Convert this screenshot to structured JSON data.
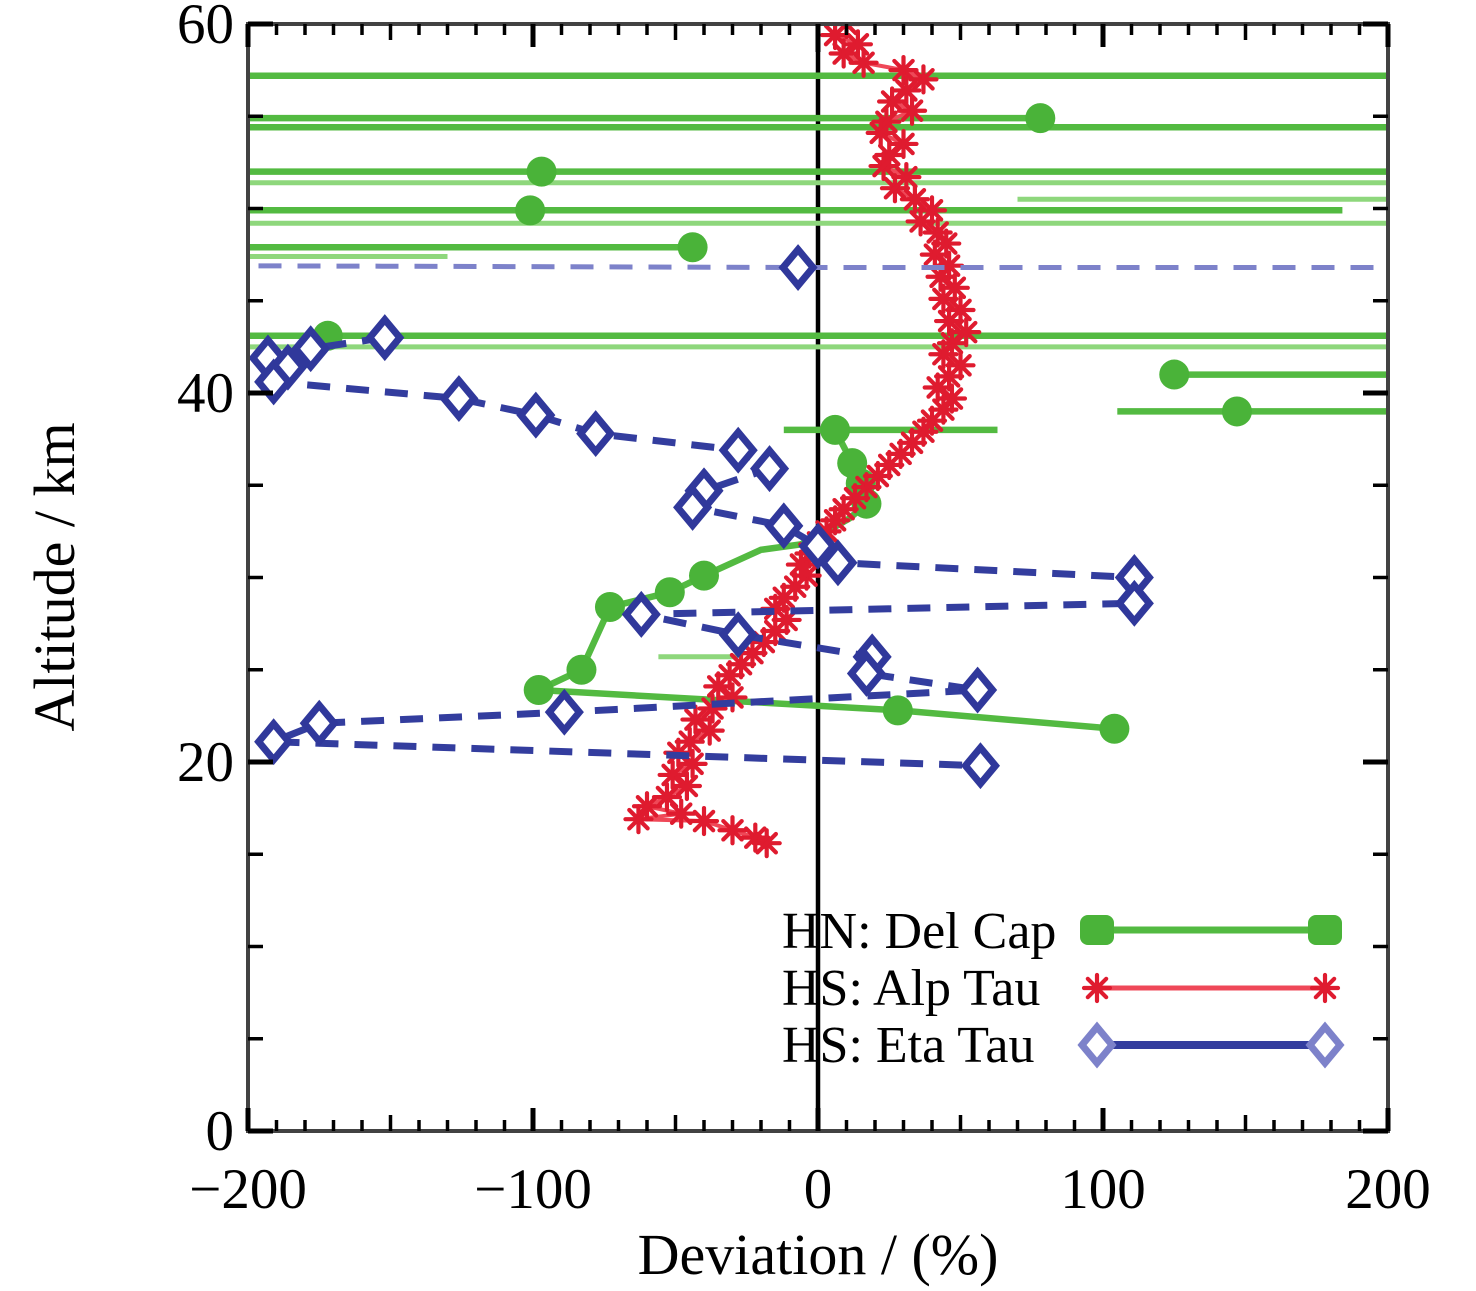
{
  "axes": {
    "xlabel": "Deviation / (%)",
    "ylabel": "Altitude / km",
    "x_tick_labels": [
      "−200",
      "−100",
      "0",
      "100",
      "200"
    ],
    "y_tick_labels": [
      "0",
      "20",
      "40",
      "60"
    ]
  },
  "legend": {
    "items": [
      {
        "label": "HN: Del Cap"
      },
      {
        "label": "HS: Alp Tau"
      },
      {
        "label": "HS: Eta Tau"
      }
    ]
  },
  "chart_data": {
    "type": "line",
    "title": "",
    "xlabel": "Deviation / (%)",
    "ylabel": "Altitude / km",
    "xlim": [
      -200,
      200
    ],
    "ylim": [
      0,
      60
    ],
    "x_major_ticks": [
      -200,
      -100,
      0,
      100,
      200
    ],
    "x_medium_step": 50,
    "x_minor_step": 10,
    "y_major_ticks": [
      0,
      20,
      40,
      60
    ],
    "y_minor_step": 5,
    "zero_line_x": 0,
    "grid": false,
    "legend_position": "lower right inside plot",
    "series": [
      {
        "id": "hn-del-cap",
        "name": "HN: Del Cap",
        "color": "#53ba41",
        "light_color": "#8ed77c",
        "marker": "circle",
        "marker_color": "#4ab339",
        "line_style": "solid",
        "line_width": 6.5,
        "chains": [
          {
            "line": [
              [
                -210,
                57.2
              ],
              [
                210,
                57.2
              ]
            ]
          },
          {
            "line": [
              [
                -210,
                54.9
              ],
              [
                78,
                54.9
              ]
            ],
            "markers": [
              [
                78,
                54.9
              ]
            ]
          },
          {
            "line": [
              [
                -210,
                54.4
              ],
              [
                210,
                54.4
              ]
            ]
          },
          {
            "line": [
              [
                -210,
                52.0
              ],
              [
                -97,
                52.0
              ],
              [
                210,
                52.0
              ]
            ],
            "markers": [
              [
                -97,
                52.0
              ]
            ]
          },
          {
            "line": [
              [
                -210,
                51.4
              ],
              [
                210,
                51.4
              ]
            ],
            "light": true
          },
          {
            "line": [
              [
                70,
                50.5
              ],
              [
                210,
                50.5
              ]
            ],
            "light": true
          },
          {
            "line": [
              [
                -210,
                49.9
              ],
              [
                -101,
                49.9
              ],
              [
                184,
                49.9
              ]
            ],
            "markers": [
              [
                -101,
                49.9
              ]
            ]
          },
          {
            "line": [
              [
                -210,
                49.2
              ],
              [
                210,
                49.2
              ]
            ],
            "light": true
          },
          {
            "line": [
              [
                -210,
                47.9
              ],
              [
                -44,
                47.9
              ]
            ],
            "markers": [
              [
                -44,
                47.9
              ]
            ]
          },
          {
            "line": [
              [
                -210,
                47.4
              ],
              [
                -130,
                47.4
              ]
            ],
            "light": true
          },
          {
            "line": [
              [
                -210,
                43.1
              ],
              [
                -172,
                43.1
              ],
              [
                210,
                43.1
              ]
            ],
            "markers": [
              [
                -172,
                43.1
              ]
            ]
          },
          {
            "line": [
              [
                -210,
                42.5
              ],
              [
                210,
                42.5
              ]
            ],
            "light": true
          },
          {
            "line": [
              [
                125,
                41.0
              ],
              [
                210,
                41.0
              ]
            ],
            "markers": [
              [
                125,
                41.0
              ]
            ]
          },
          {
            "line": [
              [
                105,
                39.0
              ],
              [
                147,
                39.0
              ],
              [
                210,
                39.0
              ]
            ],
            "markers": [
              [
                147,
                39.0
              ]
            ]
          },
          {
            "line": [
              [
                -12,
                38.0
              ],
              [
                6,
                38.0
              ],
              [
                63,
                38.0
              ]
            ],
            "markers": [
              [
                6,
                38.0
              ]
            ]
          },
          {
            "line": [
              [
                6,
                38.0
              ],
              [
                12,
                36.2
              ],
              [
                15,
                35.1
              ],
              [
                17,
                34.0
              ],
              [
                11,
                33.2
              ],
              [
                2,
                32.4
              ],
              [
                -6,
                31.8
              ],
              [
                -20,
                31.5
              ],
              [
                -40,
                30.1
              ],
              [
                -52,
                29.2
              ],
              [
                -73,
                28.4
              ],
              [
                -83,
                25.0
              ],
              [
                -98,
                23.9
              ],
              [
                28,
                22.8
              ],
              [
                104,
                21.8
              ]
            ],
            "markers": [
              [
                12,
                36.2
              ],
              [
                15,
                35.1
              ],
              [
                17,
                34.0
              ],
              [
                -40,
                30.1
              ],
              [
                -52,
                29.2
              ],
              [
                -73,
                28.4
              ],
              [
                -83,
                25.0
              ],
              [
                -98,
                23.9
              ],
              [
                28,
                22.8
              ],
              [
                104,
                21.8
              ]
            ]
          },
          {
            "line": [
              [
                -56,
                25.7
              ],
              [
                -28,
                25.7
              ]
            ],
            "light": true
          }
        ]
      },
      {
        "id": "hs-alp-tau",
        "name": "HS: Alp Tau",
        "color": "#ef4858",
        "light_color": "#f58a95",
        "marker": "asterisk",
        "marker_color": "#df1b2f",
        "line_style": "solid",
        "line_width": 4,
        "chains": [
          {
            "line": [
              [
                10,
                60.0
              ],
              [
                6,
                59.4
              ],
              [
                14,
                58.9
              ],
              [
                9,
                58.4
              ],
              [
                16,
                57.9
              ],
              [
                30,
                57.5
              ],
              [
                37,
                57.0
              ],
              [
                31,
                56.4
              ],
              [
                26,
                55.8
              ],
              [
                33,
                55.3
              ],
              [
                24,
                54.7
              ],
              [
                22,
                54.1
              ],
              [
                30,
                53.5
              ],
              [
                25,
                52.9
              ],
              [
                23,
                52.3
              ],
              [
                31,
                51.7
              ],
              [
                27,
                51.1
              ],
              [
                34,
                50.5
              ],
              [
                40,
                49.9
              ],
              [
                36,
                49.3
              ],
              [
                42,
                48.7
              ],
              [
                45,
                48.1
              ],
              [
                41,
                47.5
              ],
              [
                46,
                46.9
              ],
              [
                43,
                46.3
              ],
              [
                48,
                45.7
              ],
              [
                44,
                45.1
              ],
              [
                50,
                44.5
              ],
              [
                46,
                43.9
              ],
              [
                52,
                43.3
              ],
              [
                47,
                42.7
              ],
              [
                44,
                42.1
              ],
              [
                50,
                41.5
              ],
              [
                46,
                40.9
              ],
              [
                42,
                40.3
              ],
              [
                47,
                39.7
              ],
              [
                44,
                39.1
              ],
              [
                40,
                38.5
              ],
              [
                37,
                37.9
              ],
              [
                33,
                37.3
              ],
              [
                29,
                36.7
              ],
              [
                25,
                36.1
              ],
              [
                21,
                35.5
              ],
              [
                17,
                34.9
              ],
              [
                13,
                34.3
              ],
              [
                9,
                33.7
              ],
              [
                6,
                33.1
              ],
              [
                3,
                32.5
              ],
              [
                0,
                31.9
              ],
              [
                -3,
                31.3
              ],
              [
                -6,
                30.7
              ],
              [
                -4,
                30.1
              ],
              [
                -8,
                29.5
              ],
              [
                -12,
                28.9
              ],
              [
                -15,
                28.3
              ],
              [
                -11,
                27.7
              ],
              [
                -15,
                27.1
              ],
              [
                -19,
                26.5
              ],
              [
                -23,
                25.9
              ],
              [
                -27,
                25.3
              ],
              [
                -31,
                24.7
              ],
              [
                -35,
                24.1
              ],
              [
                -30,
                23.5
              ],
              [
                -37,
                22.9
              ],
              [
                -43,
                22.3
              ],
              [
                -38,
                21.7
              ],
              [
                -45,
                21.1
              ],
              [
                -49,
                20.5
              ],
              [
                -44,
                19.9
              ],
              [
                -51,
                19.3
              ],
              [
                -46,
                18.7
              ],
              [
                -53,
                18.1
              ],
              [
                -60,
                17.6
              ],
              [
                -48,
                17.2
              ],
              [
                -63,
                16.9
              ],
              [
                -40,
                16.8
              ],
              [
                -30,
                16.3
              ],
              [
                -22,
                15.9
              ],
              [
                -18,
                15.6
              ]
            ],
            "markers": "all"
          }
        ]
      },
      {
        "id": "hs-eta-tau",
        "name": "HS: Eta Tau",
        "color": "#333d9e",
        "light_color": "#7d82ca",
        "marker": "diamond",
        "marker_color": "#30389b",
        "line_style": "dashed",
        "line_width": 7,
        "chains": [
          {
            "line": [
              [
                -210,
                46.9
              ],
              [
                -7,
                46.8
              ],
              [
                210,
                46.8
              ]
            ],
            "markers": [
              [
                -7,
                46.8
              ]
            ],
            "light": true
          },
          {
            "line": [
              [
                -152,
                43.0
              ],
              [
                -178,
                42.4
              ],
              [
                -193,
                41.9
              ],
              [
                -186,
                41.4
              ],
              [
                -191,
                40.6
              ],
              [
                -126,
                39.7
              ],
              [
                -99,
                38.8
              ],
              [
                -78,
                37.8
              ],
              [
                -28,
                36.9
              ],
              [
                -17,
                35.9
              ],
              [
                -40,
                34.7
              ],
              [
                -44,
                33.8
              ],
              [
                -12,
                32.8
              ],
              [
                0,
                31.7
              ],
              [
                7,
                30.8
              ],
              [
                111,
                30.0
              ],
              [
                111,
                28.6
              ],
              [
                -62,
                28.0
              ],
              [
                -28,
                26.9
              ],
              [
                19,
                25.7
              ],
              [
                17,
                24.8
              ],
              [
                56,
                23.9
              ],
              [
                -89,
                22.7
              ],
              [
                -175,
                22.1
              ],
              [
                -191,
                21.1
              ],
              [
                57,
                19.8
              ]
            ],
            "markers": "all"
          }
        ]
      }
    ]
  }
}
